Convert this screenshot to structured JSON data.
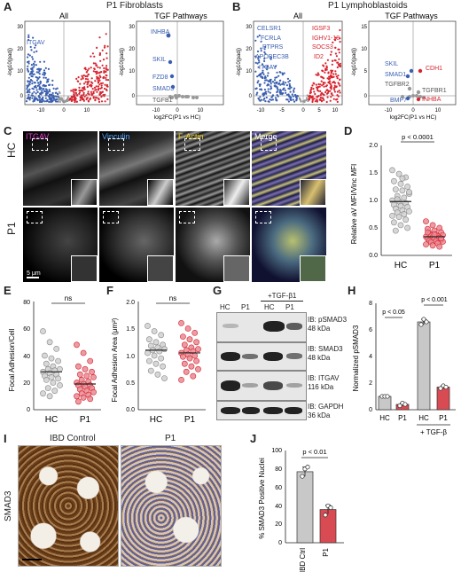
{
  "panels": {
    "A": {
      "letter": "A",
      "title": "P1 Fibroblasts",
      "left_title": "All",
      "right_title": "TGF Pathways",
      "ylabel": "-log10(padj)",
      "xlabel": "log2FC(P1 vs HC)",
      "left_xticks": [
        "-10",
        "0",
        "10"
      ],
      "left_yticks": [
        "0",
        "10",
        "20",
        "30"
      ],
      "right_xticks": [
        "-10",
        "0",
        "10"
      ],
      "right_yticks": [
        "0",
        "10",
        "20",
        "30"
      ],
      "left_genes": [
        "ITGAV"
      ],
      "right_genes": [
        "INHBA",
        "SKIL",
        "FZD8",
        "SMAD3",
        "TGFB1"
      ]
    },
    "B": {
      "letter": "B",
      "title": "P1 Lymphoblastoids",
      "left_title": "All",
      "right_title": "TGF Pathways",
      "ylabel": "-log10(padj)",
      "xlabel": "log2FC(P1 vs HC)",
      "left_xticks": [
        "-10",
        "-5",
        "0",
        "5",
        "10"
      ],
      "left_yticks": [
        "0",
        "10",
        "20",
        "30"
      ],
      "right_xticks": [
        "-10",
        "0",
        "10"
      ],
      "right_yticks": [
        "0",
        "5",
        "10",
        "15"
      ],
      "left_genes_blue": [
        "CELSR1",
        "FCRLA",
        "PTPRS",
        "APOBEC3B",
        "ITGAV"
      ],
      "left_genes_red": [
        "IGSF3",
        "IGHV1-18",
        "SOCS3",
        "ID2"
      ],
      "right_genes_blue": [
        "SKIL",
        "SMAD1",
        "TGFBR2",
        "BMP7"
      ],
      "right_genes_red": [
        "CDH1",
        "TGFBR1",
        "INHBA"
      ]
    },
    "C": {
      "letter": "C",
      "channels": [
        "ITGAV",
        "Vinculin",
        "F-Actin",
        "Merge"
      ],
      "rows": [
        "HC",
        "P1"
      ],
      "scalebar": "5 μm"
    },
    "D": {
      "letter": "D",
      "ylabel": "Relative aV MFI/Vinc MFI",
      "yticks": [
        "0.0",
        "0.5",
        "1.0",
        "1.5",
        "2.0"
      ],
      "categories": [
        "HC",
        "P1"
      ],
      "pvalue": "p < 0.0001"
    },
    "E": {
      "letter": "E",
      "ylabel": "Focal Adhesion/Cell",
      "yticks": [
        "0",
        "20",
        "40",
        "60",
        "80"
      ],
      "categories": [
        "HC",
        "P1"
      ],
      "pvalue": "ns"
    },
    "F": {
      "letter": "F",
      "ylabel": "Focal Adhesion Area (μm²)",
      "yticks": [
        "0.0",
        "0.5",
        "1.0",
        "1.5",
        "2.0"
      ],
      "categories": [
        "HC",
        "P1"
      ],
      "pvalue": "ns"
    },
    "G": {
      "letter": "G",
      "treatment": "+TGF-β1",
      "lanes": [
        "HC",
        "P1",
        "HC",
        "P1"
      ],
      "blots": [
        {
          "name": "IB: pSMAD3",
          "kda": "48 kDa"
        },
        {
          "name": "IB: SMAD3",
          "kda": "48 kDa"
        },
        {
          "name": "IB: ITGAV",
          "kda": "116 kDa"
        },
        {
          "name": "IB: GAPDH",
          "kda": "36 kDa"
        }
      ]
    },
    "H": {
      "letter": "H",
      "ylabel": "Normalized pSMAD3",
      "yticks": [
        "0",
        "2",
        "4",
        "6",
        "8"
      ],
      "categories": [
        "HC",
        "P1",
        "HC",
        "P1"
      ],
      "treatment": "+ TGF-β",
      "pvalue_left": "p < 0.05",
      "pvalue_right": "p < 0.001"
    },
    "I": {
      "letter": "I",
      "left_title": "IBD Control",
      "right_title": "P1",
      "row_label": "SMAD3"
    },
    "J": {
      "letter": "J",
      "ylabel": "% SMAD3 Positive Nuclei",
      "yticks": [
        "0",
        "20",
        "40",
        "60",
        "80",
        "100"
      ],
      "categories": [
        "IBD Ctrl",
        "P1"
      ],
      "pvalue": "p < 0.01"
    }
  },
  "colors": {
    "blue": "#3a5fb0",
    "red": "#d8242f",
    "gray": "#999999",
    "pink": "#e88a93",
    "barred": "#d94b53",
    "bargray": "#c8c8c8",
    "brown": "#8a5a2b"
  },
  "chart_data": [
    {
      "type": "scatter",
      "panel": "D",
      "categories": [
        "HC",
        "P1"
      ],
      "ylim": [
        0,
        2.0
      ],
      "series": [
        {
          "name": "HC",
          "values": [
            1.55,
            1.48,
            1.42,
            1.35,
            1.3,
            1.25,
            1.2,
            1.18,
            1.12,
            1.08,
            1.05,
            1.0,
            0.98,
            0.95,
            0.92,
            0.9,
            0.88,
            0.85,
            0.82,
            0.8,
            0.78,
            0.75,
            0.72,
            0.7,
            0.65,
            0.6,
            0.55,
            0.5,
            0.45,
            1.4,
            1.15,
            1.02
          ]
        },
        {
          "name": "P1",
          "values": [
            0.62,
            0.55,
            0.5,
            0.48,
            0.45,
            0.42,
            0.4,
            0.38,
            0.37,
            0.36,
            0.35,
            0.34,
            0.33,
            0.32,
            0.3,
            0.3,
            0.28,
            0.27,
            0.26,
            0.25,
            0.24,
            0.22,
            0.2,
            0.18,
            0.16,
            0.42,
            0.38,
            0.31
          ]
        }
      ]
    },
    {
      "type": "scatter",
      "panel": "E",
      "categories": [
        "HC",
        "P1"
      ],
      "ylim": [
        0,
        80
      ],
      "series": [
        {
          "name": "HC",
          "values": [
            58,
            50,
            45,
            40,
            38,
            36,
            34,
            32,
            30,
            30,
            29,
            28,
            27,
            26,
            25,
            24,
            23,
            22,
            20,
            18,
            16,
            14,
            12,
            10
          ]
        },
        {
          "name": "P1",
          "values": [
            48,
            42,
            36,
            32,
            30,
            28,
            26,
            25,
            24,
            22,
            21,
            20,
            19,
            18,
            18,
            17,
            16,
            15,
            14,
            13,
            12,
            11,
            10,
            9,
            8,
            6
          ]
        }
      ]
    },
    {
      "type": "scatter",
      "panel": "F",
      "categories": [
        "HC",
        "P1"
      ],
      "ylim": [
        0,
        2.0
      ],
      "series": [
        {
          "name": "HC",
          "values": [
            1.55,
            1.45,
            1.38,
            1.3,
            1.25,
            1.2,
            1.18,
            1.15,
            1.12,
            1.1,
            1.08,
            1.05,
            1.0,
            0.95,
            0.9,
            0.85,
            0.8,
            0.72,
            0.65,
            0.58
          ]
        },
        {
          "name": "P1",
          "values": [
            1.6,
            1.5,
            1.42,
            1.35,
            1.3,
            1.25,
            1.2,
            1.15,
            1.12,
            1.1,
            1.08,
            1.05,
            1.02,
            1.0,
            0.98,
            0.95,
            0.9,
            0.85,
            0.8,
            0.75,
            0.7,
            0.62,
            0.55
          ]
        }
      ]
    },
    {
      "type": "bar",
      "panel": "H",
      "categories": [
        "HC",
        "P1",
        "HC",
        "P1"
      ],
      "values": [
        1.0,
        0.4,
        6.6,
        1.7
      ],
      "ylim": [
        0,
        8
      ],
      "points": [
        [
          1.0,
          1.0,
          1.0
        ],
        [
          0.3,
          0.5,
          0.4
        ],
        [
          6.4,
          6.8,
          6.6
        ],
        [
          1.6,
          1.8,
          1.7
        ]
      ]
    },
    {
      "type": "bar",
      "panel": "J",
      "categories": [
        "IBD Ctrl",
        "P1"
      ],
      "values": [
        77,
        36
      ],
      "ylim": [
        0,
        100
      ],
      "points": [
        [
          72,
          80,
          82
        ],
        [
          30,
          40,
          38
        ]
      ]
    }
  ]
}
